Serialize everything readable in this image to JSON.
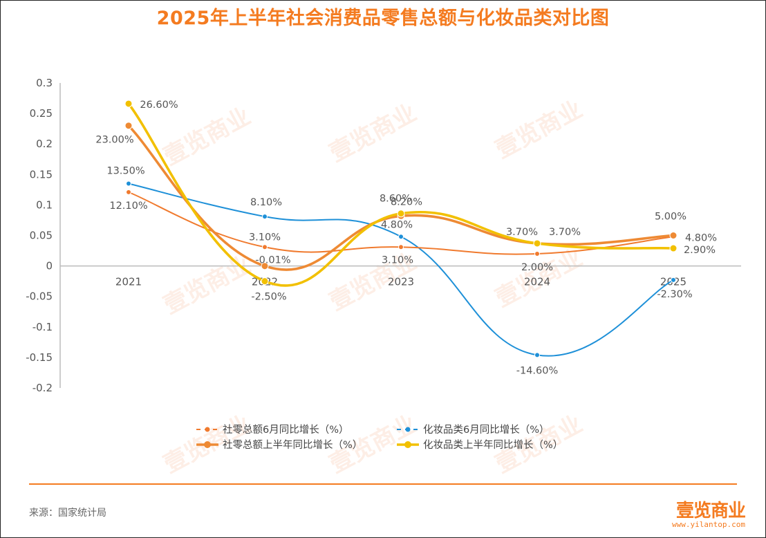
{
  "title": "2025年上半年社会消费品零售总额与化妆品类对比图",
  "source": "来源：国家统计局",
  "brand": {
    "name": "壹览商业",
    "url": "www.yilantop.com"
  },
  "colors": {
    "title": "#F47B20",
    "retail_june": "#F07A2E",
    "cosmetics_june": "#1E90D8",
    "retail_h1": "#EE8A34",
    "cosmetics_h1": "#F2C000"
  },
  "chart_data": {
    "type": "line",
    "title": "2025年上半年社会消费品零售总额与化妆品类对比图",
    "xlabel": "",
    "ylabel": "",
    "x": [
      "2021",
      "2022",
      "2023",
      "2024",
      "2025"
    ],
    "ylim": [
      -0.2,
      0.3
    ],
    "yticks": [
      "-0.2",
      "-0.15",
      "-0.1",
      "-0.05",
      "0",
      "0.05",
      "0.1",
      "0.15",
      "0.2",
      "0.25",
      "0.3"
    ],
    "grid": false,
    "legend_position": "bottom-center",
    "series": [
      {
        "name": "社零总额6月同比增长（%）",
        "key": "retail_june",
        "values": [
          0.121,
          0.031,
          0.031,
          0.02,
          0.048
        ],
        "labels": [
          "12.10%",
          "3.10%",
          "3.10%",
          "2.00%",
          "4.80%"
        ],
        "style": "dashed-thin"
      },
      {
        "name": "化妆品类6月同比增长（%）",
        "key": "cosmetics_june",
        "values": [
          0.135,
          0.081,
          0.048,
          -0.146,
          -0.023
        ],
        "labels": [
          "13.50%",
          "8.10%",
          "4.80%",
          "-14.60%",
          "-2.30%"
        ],
        "style": "dashed-thin"
      },
      {
        "name": "社零总额上半年同比增长（%）",
        "key": "retail_h1",
        "values": [
          0.23,
          -0.0001,
          0.082,
          0.037,
          0.05
        ],
        "labels": [
          "23.00%",
          "-0.01%",
          "8.20%",
          "3.70%",
          "5.00%"
        ],
        "style": "solid-thick"
      },
      {
        "name": "化妆品类上半年同比增长（%）",
        "key": "cosmetics_h1",
        "values": [
          0.266,
          -0.025,
          0.086,
          0.037,
          0.029
        ],
        "labels": [
          "26.60%",
          "-2.50%",
          "8.60%",
          "3.70%",
          "2.90%"
        ],
        "style": "solid-thick"
      }
    ]
  }
}
